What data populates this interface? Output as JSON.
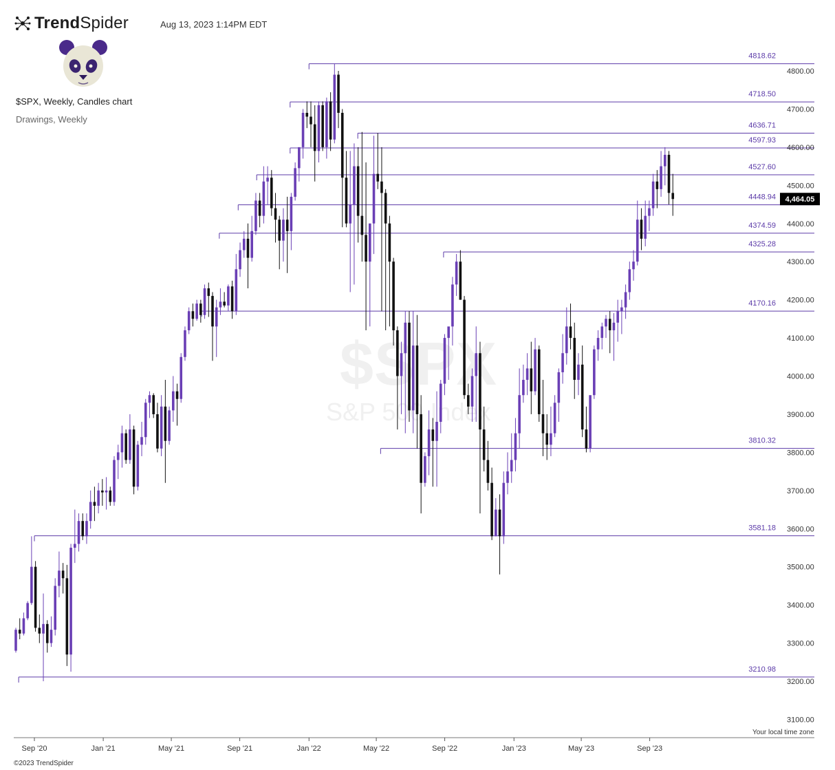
{
  "header": {
    "brand_bold": "Trend",
    "brand_light": "Spider",
    "timestamp": "Aug 13, 2023 1:14PM EDT",
    "title": "$SPX, Weekly, Candles chart",
    "subtitle": "Drawings, Weekly"
  },
  "watermark": {
    "ticker": "$SPX",
    "name": "S&P 500 Index"
  },
  "footer": {
    "timezone": "Your local time zone",
    "copyright": "©2023 TrendSpider"
  },
  "colors": {
    "bull": "#6a3fb5",
    "bear": "#111111",
    "level": "#5b3aa8",
    "axis": "#333333"
  },
  "chart_data": {
    "type": "candlestick",
    "symbol": "$SPX",
    "interval": "Weekly",
    "last_price": "4,464.05",
    "ylim": [
      3050,
      4850
    ],
    "y_ticks": [
      3100,
      3200,
      3300,
      3400,
      3500,
      3600,
      3700,
      3800,
      3900,
      4000,
      4100,
      4200,
      4300,
      4400,
      4500,
      4600,
      4700,
      4800
    ],
    "y_tick_labels": [
      "3100.00",
      "3200.00",
      "3300.00",
      "3400.00",
      "3500.00",
      "3600.00",
      "3700.00",
      "3800.00",
      "3900.00",
      "4000.00",
      "4100.00",
      "4200.00",
      "4300.00",
      "4400.00",
      "4500.00",
      "4600.00",
      "4700.00",
      "4800.00"
    ],
    "x_ticks": [
      {
        "label": "Sep '20",
        "week": 0
      },
      {
        "label": "Jan '21",
        "week": 17.5
      },
      {
        "label": "May '21",
        "week": 34.8
      },
      {
        "label": "Sep '21",
        "week": 52.2
      },
      {
        "label": "Jan '22",
        "week": 69.8
      },
      {
        "label": "May '22",
        "week": 86.9
      },
      {
        "label": "Sep '22",
        "week": 104.3
      },
      {
        "label": "Jan '23",
        "week": 121.9
      },
      {
        "label": "May '23",
        "week": 139.0
      },
      {
        "label": "Sep '23",
        "week": 156.4
      }
    ],
    "levels": [
      {
        "value": 4818.62,
        "label": "4818.62",
        "from_week": 69.8
      },
      {
        "value": 4718.5,
        "label": "4718.50",
        "from_week": 65.0
      },
      {
        "value": 4636.71,
        "label": "4636.71",
        "from_week": 82.2
      },
      {
        "value": 4597.93,
        "label": "4597.93",
        "from_week": 65.0
      },
      {
        "value": 4527.6,
        "label": "4527.60",
        "from_week": 56.5
      },
      {
        "value": 4448.94,
        "label": "4448.94",
        "from_week": 51.8
      },
      {
        "value": 4374.59,
        "label": "4374.59",
        "from_week": 47.0
      },
      {
        "value": 4325.28,
        "label": "4325.28",
        "from_week": 104.0
      },
      {
        "value": 4170.16,
        "label": "4170.16",
        "from_week": 42.5
      },
      {
        "value": 3810.32,
        "label": "3810.32",
        "from_week": 88.0
      },
      {
        "value": 3581.18,
        "label": "3581.18",
        "from_week": 0
      },
      {
        "value": 3210.98,
        "label": "3210.98",
        "from_week": -4
      }
    ],
    "candles_ohlc": [
      [
        3280,
        3340,
        3275,
        3335
      ],
      [
        3335,
        3365,
        3310,
        3325
      ],
      [
        3325,
        3380,
        3320,
        3365
      ],
      [
        3365,
        3410,
        3360,
        3405
      ],
      [
        3405,
        3580,
        3400,
        3500
      ],
      [
        3500,
        3515,
        3330,
        3340
      ],
      [
        3340,
        3375,
        3300,
        3325
      ],
      [
        3325,
        3430,
        3200,
        3350
      ],
      [
        3350,
        3360,
        3275,
        3300
      ],
      [
        3300,
        3370,
        3290,
        3335
      ],
      [
        3335,
        3470,
        3320,
        3450
      ],
      [
        3450,
        3540,
        3420,
        3490
      ],
      [
        3490,
        3510,
        3430,
        3470
      ],
      [
        3470,
        3505,
        3240,
        3270
      ],
      [
        3270,
        3560,
        3225,
        3550
      ],
      [
        3550,
        3650,
        3510,
        3560
      ],
      [
        3560,
        3640,
        3540,
        3620
      ],
      [
        3620,
        3640,
        3570,
        3580
      ],
      [
        3580,
        3640,
        3560,
        3620
      ],
      [
        3620,
        3700,
        3600,
        3670
      ],
      [
        3670,
        3710,
        3620,
        3660
      ],
      [
        3660,
        3720,
        3640,
        3700
      ],
      [
        3700,
        3730,
        3660,
        3695
      ],
      [
        3695,
        3735,
        3650,
        3700
      ],
      [
        3700,
        3710,
        3660,
        3670
      ],
      [
        3670,
        3790,
        3660,
        3780
      ],
      [
        3780,
        3820,
        3730,
        3800
      ],
      [
        3800,
        3870,
        3760,
        3850
      ],
      [
        3850,
        3860,
        3770,
        3780
      ],
      [
        3780,
        3900,
        3770,
        3860
      ],
      [
        3860,
        3870,
        3690,
        3710
      ],
      [
        3710,
        3830,
        3700,
        3820
      ],
      [
        3820,
        3880,
        3790,
        3840
      ],
      [
        3840,
        3940,
        3820,
        3930
      ],
      [
        3930,
        3960,
        3890,
        3950
      ],
      [
        3950,
        3955,
        3890,
        3900
      ],
      [
        3900,
        3930,
        3800,
        3810
      ],
      [
        3810,
        3950,
        3790,
        3920
      ],
      [
        3920,
        3990,
        3720,
        3830
      ],
      [
        3830,
        3920,
        3820,
        3910
      ],
      [
        3910,
        4000,
        3880,
        3960
      ],
      [
        3960,
        3980,
        3870,
        3940
      ],
      [
        3940,
        4060,
        3930,
        4050
      ],
      [
        4050,
        4130,
        4040,
        4120
      ],
      [
        4120,
        4180,
        4110,
        4170
      ],
      [
        4170,
        4190,
        4130,
        4150
      ],
      [
        4150,
        4200,
        4145,
        4190
      ],
      [
        4190,
        4200,
        4140,
        4160
      ],
      [
        4160,
        4240,
        4150,
        4230
      ],
      [
        4230,
        4245,
        4155,
        4210
      ],
      [
        4210,
        4220,
        4040,
        4130
      ],
      [
        4130,
        4200,
        4050,
        4180
      ],
      [
        4180,
        4230,
        4160,
        4195
      ],
      [
        4195,
        4220,
        4180,
        4185
      ],
      [
        4185,
        4240,
        4170,
        4235
      ],
      [
        4235,
        4250,
        4150,
        4170
      ],
      [
        4170,
        4320,
        4160,
        4280
      ],
      [
        4280,
        4350,
        4260,
        4330
      ],
      [
        4330,
        4380,
        4310,
        4360
      ],
      [
        4360,
        4400,
        4230,
        4310
      ],
      [
        4310,
        4420,
        4300,
        4380
      ],
      [
        4380,
        4480,
        4370,
        4460
      ],
      [
        4460,
        4480,
        4390,
        4420
      ],
      [
        4420,
        4550,
        4400,
        4510
      ],
      [
        4510,
        4550,
        4450,
        4520
      ],
      [
        4520,
        4540,
        4420,
        4440
      ],
      [
        4440,
        4480,
        4350,
        4410
      ],
      [
        4410,
        4420,
        4280,
        4355
      ],
      [
        4355,
        4440,
        4300,
        4410
      ],
      [
        4410,
        4470,
        4270,
        4380
      ],
      [
        4380,
        4480,
        4330,
        4470
      ],
      [
        4470,
        4560,
        4460,
        4545
      ],
      [
        4545,
        4590,
        4510,
        4600
      ],
      [
        4600,
        4700,
        4570,
        4690
      ],
      [
        4690,
        4720,
        4650,
        4680
      ],
      [
        4680,
        4720,
        4600,
        4660
      ],
      [
        4660,
        4710,
        4510,
        4590
      ],
      [
        4590,
        4720,
        4560,
        4710
      ],
      [
        4710,
        4720,
        4590,
        4600
      ],
      [
        4600,
        4730,
        4570,
        4720
      ],
      [
        4720,
        4744,
        4590,
        4620
      ],
      [
        4620,
        4818,
        4610,
        4790
      ],
      [
        4790,
        4800,
        4650,
        4690
      ],
      [
        4690,
        4700,
        4390,
        4520
      ],
      [
        4520,
        4590,
        4390,
        4400
      ],
      [
        4400,
        4590,
        4220,
        4450
      ],
      [
        4450,
        4610,
        4240,
        4550
      ],
      [
        4550,
        4600,
        4350,
        4420
      ],
      [
        4420,
        4640,
        4300,
        4370
      ],
      [
        4370,
        4560,
        4120,
        4300
      ],
      [
        4300,
        4380,
        4130,
        4400
      ],
      [
        4400,
        4630,
        4320,
        4530
      ],
      [
        4530,
        4637,
        4490,
        4510
      ],
      [
        4510,
        4600,
        4170,
        4480
      ],
      [
        4480,
        4490,
        4120,
        4400
      ],
      [
        4400,
        4420,
        4130,
        4300
      ],
      [
        4300,
        4310,
        4080,
        4120
      ],
      [
        4120,
        4130,
        3860,
        4000
      ],
      [
        4000,
        4090,
        3900,
        4060
      ],
      [
        4060,
        4170,
        3850,
        4140
      ],
      [
        4140,
        4170,
        3880,
        3910
      ],
      [
        3910,
        4170,
        3850,
        4080
      ],
      [
        4080,
        4160,
        3810,
        3900
      ],
      [
        3900,
        3950,
        3640,
        3720
      ],
      [
        3720,
        3800,
        3710,
        3790
      ],
      [
        3790,
        3910,
        3740,
        3860
      ],
      [
        3860,
        3890,
        3710,
        3830
      ],
      [
        3830,
        3960,
        3710,
        3880
      ],
      [
        3880,
        3990,
        3850,
        3980
      ],
      [
        3980,
        4110,
        3950,
        4100
      ],
      [
        4100,
        4120,
        3990,
        4130
      ],
      [
        4130,
        4260,
        4080,
        4240
      ],
      [
        4240,
        4320,
        4210,
        4300
      ],
      [
        4300,
        4330,
        4200,
        4200
      ],
      [
        4200,
        4210,
        3940,
        3950
      ],
      [
        3950,
        3980,
        3900,
        3920
      ],
      [
        3920,
        4020,
        3880,
        4000
      ],
      [
        4000,
        4130,
        3880,
        4060
      ],
      [
        4060,
        4090,
        3640,
        3860
      ],
      [
        3860,
        3920,
        3750,
        3780
      ],
      [
        3780,
        3830,
        3700,
        3720
      ],
      [
        3720,
        3760,
        3570,
        3580
      ],
      [
        3580,
        3680,
        3580,
        3650
      ],
      [
        3650,
        3690,
        3480,
        3580
      ],
      [
        3580,
        3750,
        3560,
        3720
      ],
      [
        3720,
        3800,
        3690,
        3750
      ],
      [
        3750,
        3850,
        3720,
        3780
      ],
      [
        3780,
        3890,
        3750,
        3850
      ],
      [
        3850,
        4020,
        3810,
        3950
      ],
      [
        3950,
        4030,
        3930,
        3990
      ],
      [
        3990,
        4060,
        3950,
        4020
      ],
      [
        4020,
        4090,
        3900,
        3960
      ],
      [
        3960,
        4100,
        3950,
        4070
      ],
      [
        4070,
        4080,
        3880,
        3900
      ],
      [
        3900,
        3990,
        3790,
        3850
      ],
      [
        3850,
        3900,
        3780,
        3820
      ],
      [
        3820,
        3920,
        3790,
        3850
      ],
      [
        3850,
        3950,
        3840,
        3930
      ],
      [
        3930,
        4020,
        3880,
        4010
      ],
      [
        4010,
        4110,
        3980,
        4060
      ],
      [
        4060,
        4180,
        4030,
        4130
      ],
      [
        4130,
        4190,
        4070,
        4100
      ],
      [
        4100,
        4140,
        3940,
        3990
      ],
      [
        3990,
        4060,
        3950,
        4030
      ],
      [
        4030,
        4080,
        3840,
        3860
      ],
      [
        3860,
        3920,
        3800,
        3810
      ],
      [
        3810,
        3920,
        3800,
        3950
      ],
      [
        3950,
        4080,
        3940,
        4070
      ],
      [
        4070,
        4120,
        4040,
        4100
      ],
      [
        4100,
        4140,
        4070,
        4130
      ],
      [
        4130,
        4160,
        4100,
        4150
      ],
      [
        4150,
        4170,
        4060,
        4120
      ],
      [
        4120,
        4165,
        4040,
        4140
      ],
      [
        4140,
        4200,
        4090,
        4170
      ],
      [
        4170,
        4200,
        4110,
        4180
      ],
      [
        4180,
        4240,
        4150,
        4220
      ],
      [
        4220,
        4300,
        4200,
        4280
      ],
      [
        4280,
        4330,
        4250,
        4300
      ],
      [
        4300,
        4460,
        4290,
        4410
      ],
      [
        4410,
        4440,
        4330,
        4360
      ],
      [
        4360,
        4460,
        4340,
        4420
      ],
      [
        4420,
        4460,
        4380,
        4440
      ],
      [
        4440,
        4530,
        4420,
        4510
      ],
      [
        4510,
        4540,
        4440,
        4490
      ],
      [
        4490,
        4590,
        4470,
        4550
      ],
      [
        4550,
        4600,
        4500,
        4580
      ],
      [
        4580,
        4590,
        4450,
        4480
      ],
      [
        4480,
        4530,
        4420,
        4464.05
      ]
    ]
  }
}
